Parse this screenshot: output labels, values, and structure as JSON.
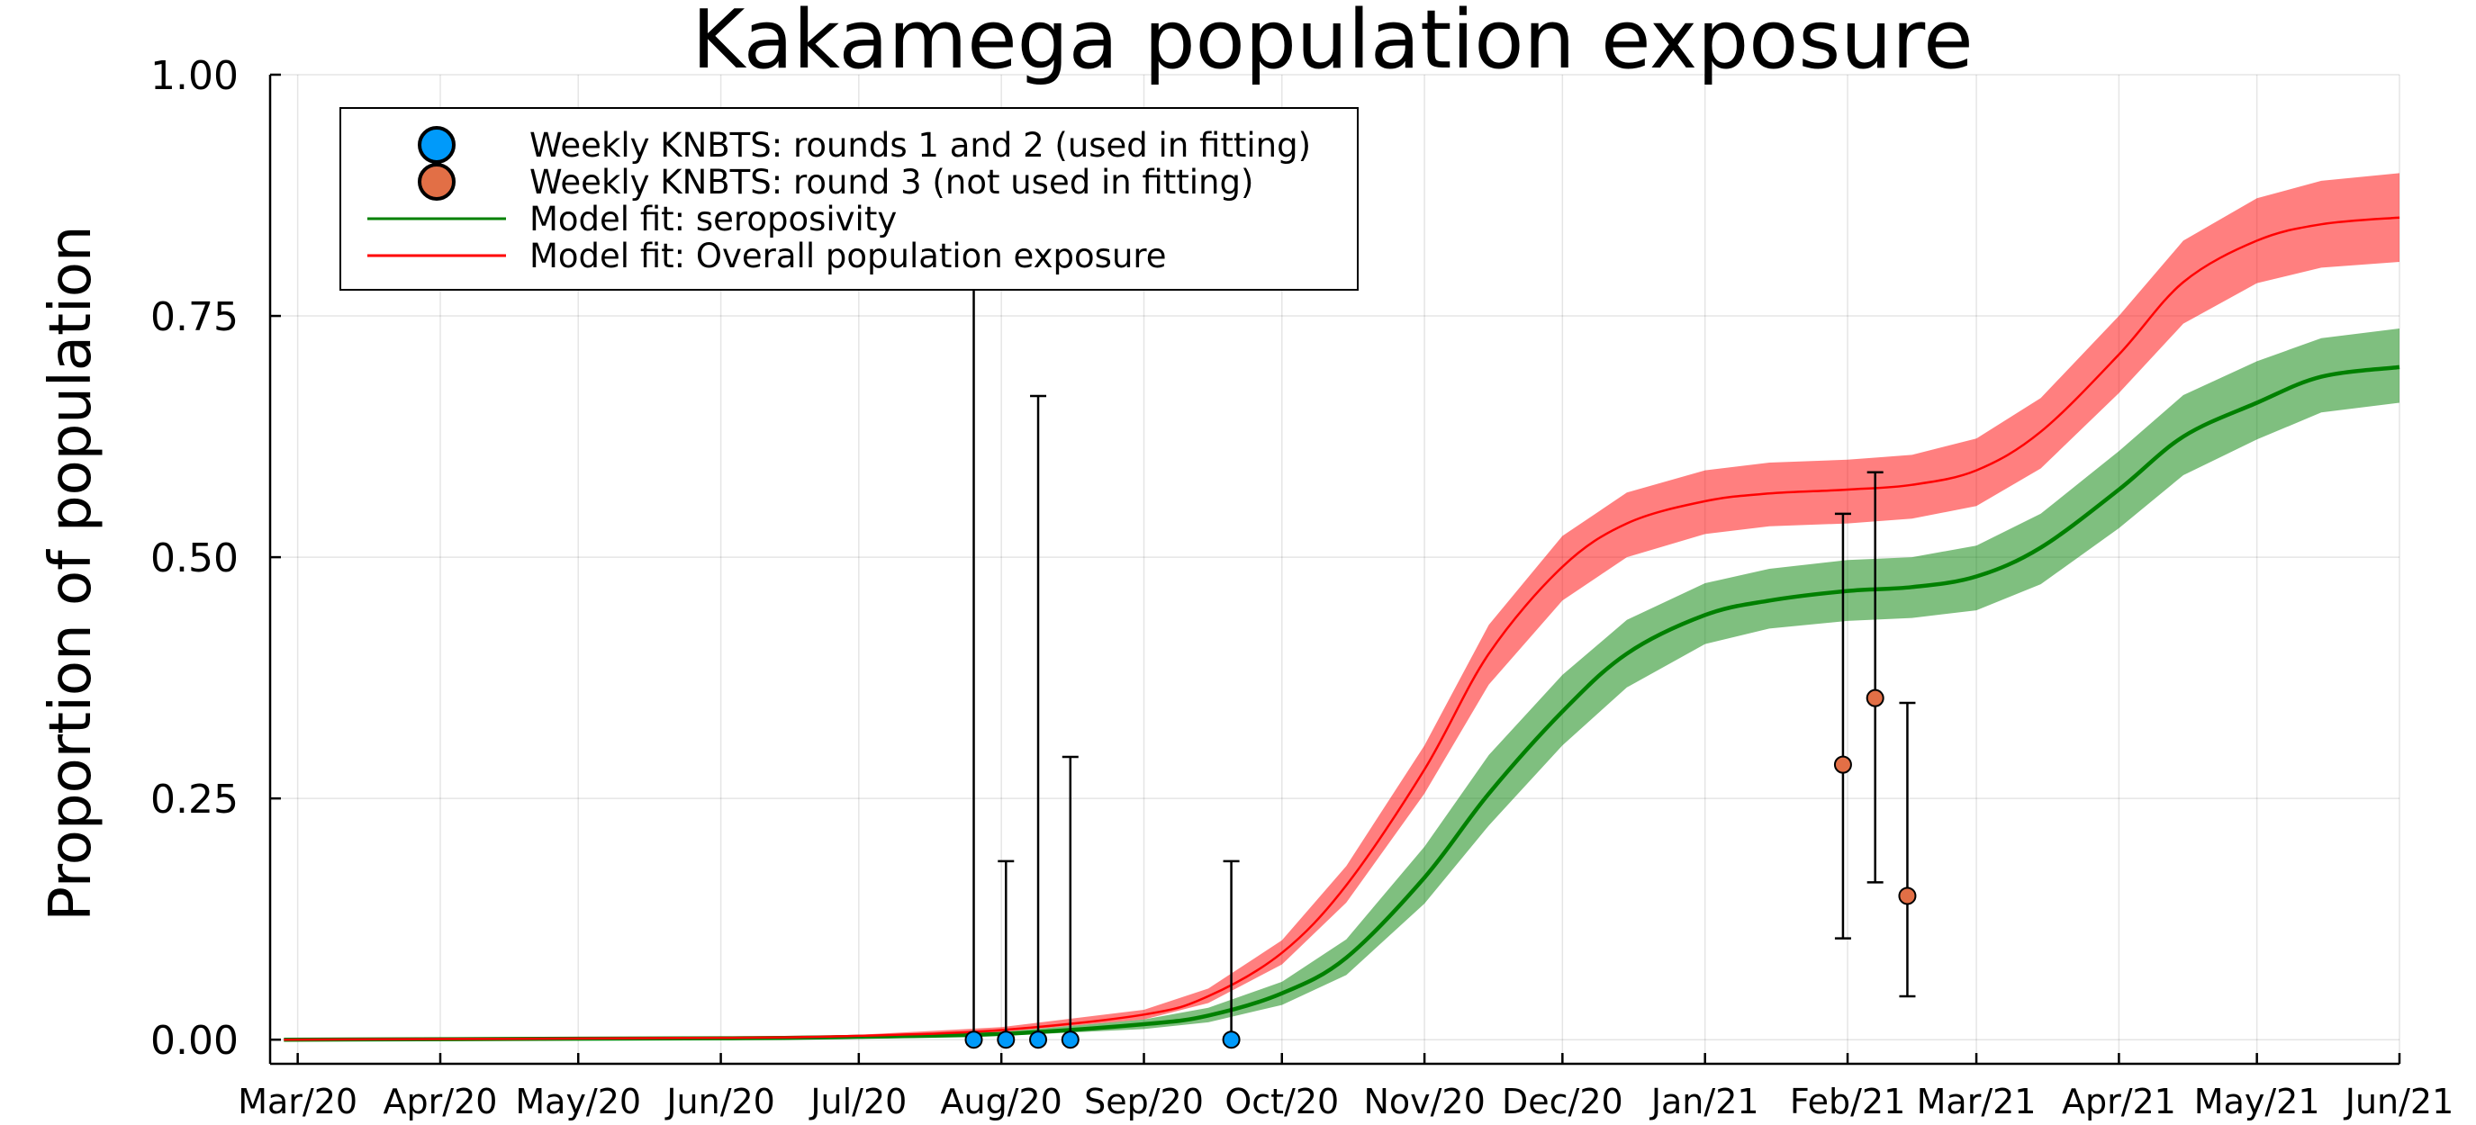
{
  "chart_data": {
    "type": "line",
    "title": "Kakamega population exposure",
    "xlabel": "",
    "ylabel": "Proportion of population",
    "x_axis": {
      "type": "date",
      "range": [
        "2020-02-24",
        "2021-06-01"
      ],
      "ticks": [
        {
          "date": "2020-03-01",
          "label": "Mar/20"
        },
        {
          "date": "2020-04-01",
          "label": "Apr/20"
        },
        {
          "date": "2020-05-01",
          "label": "May/20"
        },
        {
          "date": "2020-06-01",
          "label": "Jun/20"
        },
        {
          "date": "2020-07-01",
          "label": "Jul/20"
        },
        {
          "date": "2020-08-01",
          "label": "Aug/20"
        },
        {
          "date": "2020-09-01",
          "label": "Sep/20"
        },
        {
          "date": "2020-10-01",
          "label": "Oct/20"
        },
        {
          "date": "2020-11-01",
          "label": "Nov/20"
        },
        {
          "date": "2020-12-01",
          "label": "Dec/20"
        },
        {
          "date": "2021-01-01",
          "label": "Jan/21"
        },
        {
          "date": "2021-02-01",
          "label": "Feb/21"
        },
        {
          "date": "2021-03-01",
          "label": "Mar/21"
        },
        {
          "date": "2021-04-01",
          "label": "Apr/21"
        },
        {
          "date": "2021-05-01",
          "label": "May/21"
        },
        {
          "date": "2021-06-01",
          "label": "Jun/21"
        }
      ]
    },
    "y_axis": {
      "range": [
        -0.025,
        1.0
      ],
      "ticks": [
        {
          "value": 0.0,
          "label": "0.00"
        },
        {
          "value": 0.25,
          "label": "0.25"
        },
        {
          "value": 0.5,
          "label": "0.50"
        },
        {
          "value": 0.75,
          "label": "0.75"
        },
        {
          "value": 1.0,
          "label": "1.00"
        }
      ]
    },
    "grid": true,
    "legend": {
      "placement": "top-left",
      "entries": [
        {
          "label": "Weekly KNBTS: rounds 1 and 2 (used in fitting)",
          "kind": "marker",
          "color": "#009AFA"
        },
        {
          "label": "Weekly KNBTS: round 3 (not used in fitting)",
          "kind": "marker",
          "color": "#E26F46"
        },
        {
          "label": "Model fit: seroposivity",
          "kind": "line",
          "color": "#008000"
        },
        {
          "label": "Model fit: Overall population exposure",
          "kind": "line",
          "color": "#FF0000"
        }
      ]
    },
    "series": [
      {
        "name": "Weekly KNBTS: rounds 1 and 2 (used in fitting)",
        "kind": "points",
        "color": "#009AFA",
        "points": [
          {
            "date": "2020-07-26",
            "y": 0.0,
            "err_low": 0.0,
            "err_high": 0.78
          },
          {
            "date": "2020-08-02",
            "y": 0.0,
            "err_low": 0.0,
            "err_high": 0.185
          },
          {
            "date": "2020-08-09",
            "y": 0.0,
            "err_low": 0.0,
            "err_high": 0.667
          },
          {
            "date": "2020-08-16",
            "y": 0.0,
            "err_low": 0.0,
            "err_high": 0.293
          },
          {
            "date": "2020-09-20",
            "y": 0.0,
            "err_low": 0.0,
            "err_high": 0.185
          }
        ]
      },
      {
        "name": "Weekly KNBTS: round 3 (not used in fitting)",
        "kind": "points",
        "color": "#E26F46",
        "points": [
          {
            "date": "2021-01-31",
            "y": 0.285,
            "err_low": 0.105,
            "err_high": 0.545
          },
          {
            "date": "2021-02-07",
            "y": 0.354,
            "err_low": 0.163,
            "err_high": 0.588
          },
          {
            "date": "2021-02-14",
            "y": 0.149,
            "err_low": 0.045,
            "err_high": 0.349
          }
        ]
      },
      {
        "name": "Model fit: seroposivity",
        "kind": "line",
        "color": "#008000",
        "band_color": "#008000",
        "points": [
          {
            "date": "2020-02-27",
            "y": 0.0,
            "lo": 0.0,
            "hi": 0.0
          },
          {
            "date": "2020-06-01",
            "y": 0.0015,
            "lo": 0.001,
            "hi": 0.002
          },
          {
            "date": "2020-07-01",
            "y": 0.003,
            "lo": 0.002,
            "hi": 0.004
          },
          {
            "date": "2020-08-01",
            "y": 0.006,
            "lo": 0.004,
            "hi": 0.008
          },
          {
            "date": "2020-09-01",
            "y": 0.016,
            "lo": 0.011,
            "hi": 0.021
          },
          {
            "date": "2020-09-15",
            "y": 0.025,
            "lo": 0.018,
            "hi": 0.033
          },
          {
            "date": "2020-10-01",
            "y": 0.048,
            "lo": 0.036,
            "hi": 0.06
          },
          {
            "date": "2020-10-15",
            "y": 0.085,
            "lo": 0.067,
            "hi": 0.104
          },
          {
            "date": "2020-11-01",
            "y": 0.168,
            "lo": 0.141,
            "hi": 0.2
          },
          {
            "date": "2020-11-15",
            "y": 0.255,
            "lo": 0.222,
            "hi": 0.295
          },
          {
            "date": "2020-12-01",
            "y": 0.34,
            "lo": 0.305,
            "hi": 0.378
          },
          {
            "date": "2020-12-15",
            "y": 0.4,
            "lo": 0.365,
            "hi": 0.435
          },
          {
            "date": "2021-01-01",
            "y": 0.44,
            "lo": 0.41,
            "hi": 0.473
          },
          {
            "date": "2021-01-15",
            "y": 0.455,
            "lo": 0.426,
            "hi": 0.488
          },
          {
            "date": "2021-02-01",
            "y": 0.465,
            "lo": 0.434,
            "hi": 0.497
          },
          {
            "date": "2021-02-15",
            "y": 0.469,
            "lo": 0.437,
            "hi": 0.5
          },
          {
            "date": "2021-03-01",
            "y": 0.48,
            "lo": 0.445,
            "hi": 0.512
          },
          {
            "date": "2021-03-15",
            "y": 0.51,
            "lo": 0.472,
            "hi": 0.545
          },
          {
            "date": "2021-04-01",
            "y": 0.57,
            "lo": 0.53,
            "hi": 0.61
          },
          {
            "date": "2021-04-15",
            "y": 0.625,
            "lo": 0.585,
            "hi": 0.668
          },
          {
            "date": "2021-05-01",
            "y": 0.66,
            "lo": 0.622,
            "hi": 0.703
          },
          {
            "date": "2021-05-15",
            "y": 0.687,
            "lo": 0.65,
            "hi": 0.727
          },
          {
            "date": "2021-06-01",
            "y": 0.697,
            "lo": 0.66,
            "hi": 0.737
          }
        ]
      },
      {
        "name": "Model fit: Overall population exposure",
        "kind": "line",
        "color": "#FF0000",
        "band_color": "#FF0000",
        "points": [
          {
            "date": "2020-02-27",
            "y": 0.0,
            "lo": 0.0,
            "hi": 0.0
          },
          {
            "date": "2020-06-01",
            "y": 0.002,
            "lo": 0.001,
            "hi": 0.003
          },
          {
            "date": "2020-07-01",
            "y": 0.004,
            "lo": 0.003,
            "hi": 0.005
          },
          {
            "date": "2020-08-01",
            "y": 0.01,
            "lo": 0.008,
            "hi": 0.013
          },
          {
            "date": "2020-09-01",
            "y": 0.026,
            "lo": 0.021,
            "hi": 0.031
          },
          {
            "date": "2020-09-15",
            "y": 0.045,
            "lo": 0.038,
            "hi": 0.053
          },
          {
            "date": "2020-10-01",
            "y": 0.09,
            "lo": 0.078,
            "hi": 0.103
          },
          {
            "date": "2020-10-15",
            "y": 0.16,
            "lo": 0.142,
            "hi": 0.18
          },
          {
            "date": "2020-11-01",
            "y": 0.28,
            "lo": 0.255,
            "hi": 0.305
          },
          {
            "date": "2020-11-15",
            "y": 0.4,
            "lo": 0.368,
            "hi": 0.43
          },
          {
            "date": "2020-12-01",
            "y": 0.49,
            "lo": 0.455,
            "hi": 0.522
          },
          {
            "date": "2020-12-15",
            "y": 0.535,
            "lo": 0.5,
            "hi": 0.567
          },
          {
            "date": "2021-01-01",
            "y": 0.558,
            "lo": 0.524,
            "hi": 0.59
          },
          {
            "date": "2021-01-15",
            "y": 0.566,
            "lo": 0.532,
            "hi": 0.598
          },
          {
            "date": "2021-02-01",
            "y": 0.57,
            "lo": 0.535,
            "hi": 0.601
          },
          {
            "date": "2021-02-15",
            "y": 0.575,
            "lo": 0.54,
            "hi": 0.606
          },
          {
            "date": "2021-03-01",
            "y": 0.59,
            "lo": 0.553,
            "hi": 0.623
          },
          {
            "date": "2021-03-15",
            "y": 0.63,
            "lo": 0.592,
            "hi": 0.665
          },
          {
            "date": "2021-04-01",
            "y": 0.71,
            "lo": 0.67,
            "hi": 0.75
          },
          {
            "date": "2021-04-15",
            "y": 0.785,
            "lo": 0.742,
            "hi": 0.828
          },
          {
            "date": "2021-05-01",
            "y": 0.828,
            "lo": 0.784,
            "hi": 0.872
          },
          {
            "date": "2021-05-15",
            "y": 0.845,
            "lo": 0.8,
            "hi": 0.89
          },
          {
            "date": "2021-06-01",
            "y": 0.852,
            "lo": 0.806,
            "hi": 0.898
          }
        ]
      }
    ]
  }
}
